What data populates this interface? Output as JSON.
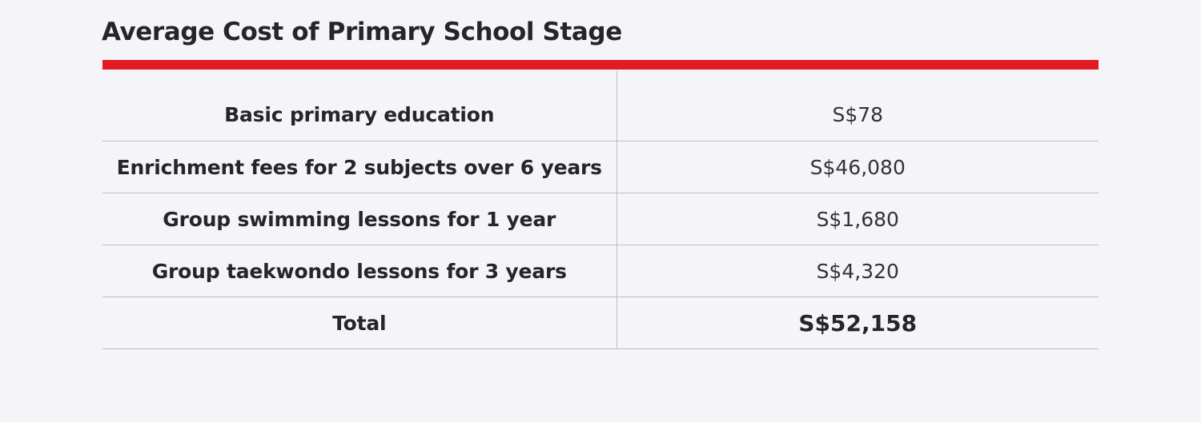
{
  "title": "Average Cost of Primary School Stage",
  "colors": {
    "background": "#f5f4f9",
    "accent_rule": "#e21b23",
    "text": "#262626",
    "grid": "#bdbcc1"
  },
  "rows": [
    {
      "item": "Basic primary education",
      "amount": "S$78"
    },
    {
      "item": "Enrichment fees for 2 subjects over 6 years",
      "amount": "S$46,080"
    },
    {
      "item": "Group swimming lessons for 1 year",
      "amount": "S$1,680"
    },
    {
      "item": "Group taekwondo lessons for 3 years",
      "amount": "S$4,320"
    }
  ],
  "total": {
    "label": "Total",
    "amount": "S$52,158"
  }
}
